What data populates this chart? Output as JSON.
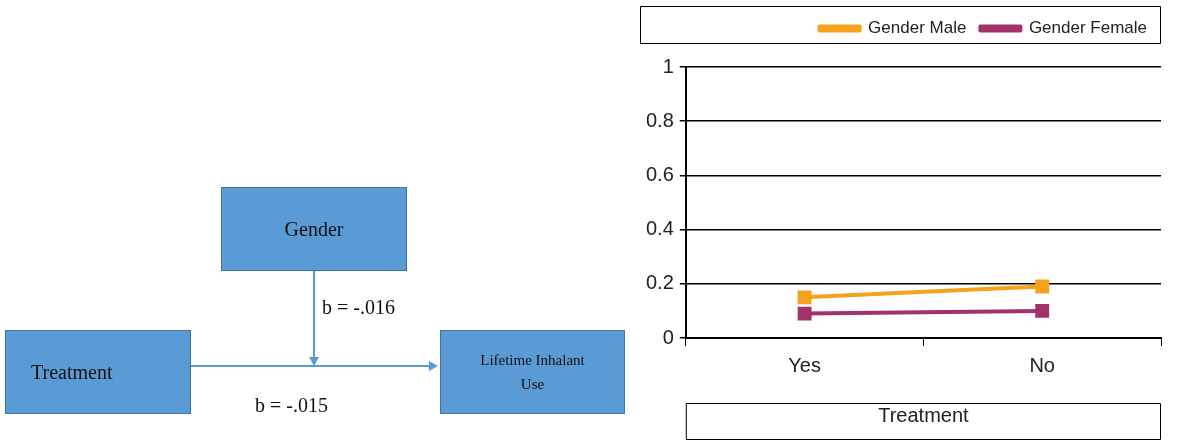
{
  "chart_data": [
    {
      "type": "other",
      "annotations": [
        "Gender",
        "Treatment",
        "Lifetime Inhalant Use",
        "b = -.016",
        "b = -.015"
      ]
    },
    {
      "type": "line",
      "categories": [
        "Yes",
        "No"
      ],
      "xlabel": "Treatment",
      "ylim": [
        0,
        1
      ],
      "yticks": [
        0,
        0.2,
        0.4,
        0.6,
        0.8,
        1
      ],
      "grid": "y",
      "legend": "top",
      "marker": "square",
      "line_style": "solid",
      "series": [
        {
          "name": "Gender Male",
          "color": "#f7a21b",
          "values": [
            0.15,
            0.19
          ]
        },
        {
          "name": "Gender Female",
          "color": "#a1336a",
          "values": [
            0.09,
            0.1
          ]
        }
      ]
    }
  ]
}
